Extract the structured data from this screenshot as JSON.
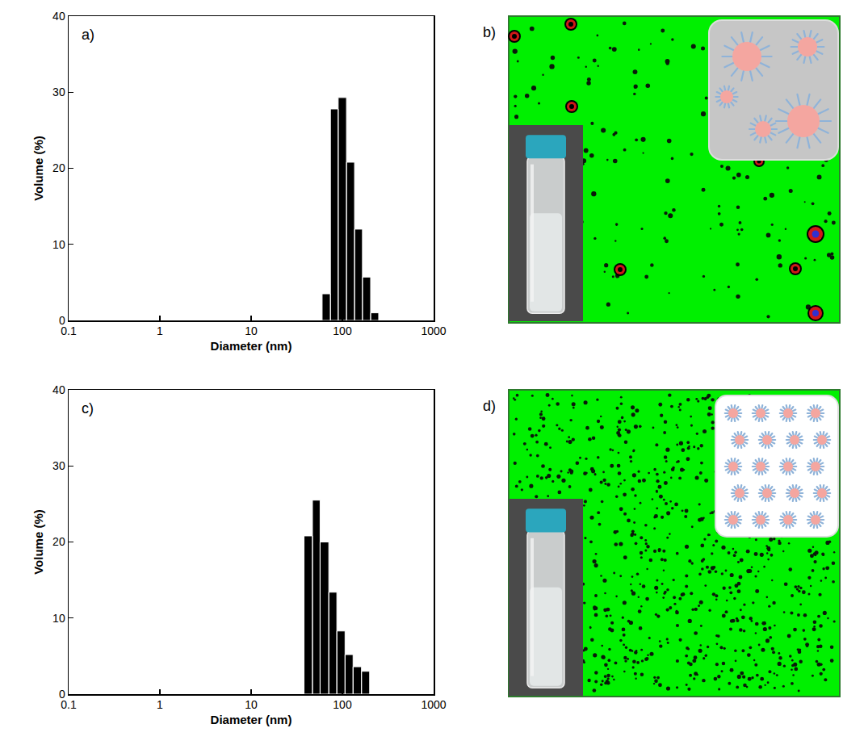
{
  "chart_data": [
    {
      "type": "histogram",
      "label": "a)",
      "x_label": "Diameter (nm)",
      "y_label": "Volume (%)",
      "bins": [
        60,
        74,
        90,
        111,
        136,
        166,
        204,
        250
      ],
      "values": [
        3.5,
        27.8,
        29.3,
        20.8,
        12.0,
        5.7,
        1.0
      ],
      "color": "#000000",
      "log": "x",
      "grid": false,
      "xlim": [
        0.1,
        1000
      ],
      "xticks": [
        0.1,
        1,
        10,
        100,
        1000
      ],
      "ylim": [
        0,
        40
      ],
      "yticks": [
        0,
        10,
        20,
        30,
        40
      ]
    },
    {
      "type": "histogram",
      "label": "c)",
      "x_label": "Diameter (nm)",
      "y_label": "Volume (%)",
      "bins": [
        38,
        47,
        57,
        71,
        87,
        107,
        131,
        162,
        199
      ],
      "values": [
        20.8,
        25.5,
        20.0,
        13.4,
        8.3,
        5.2,
        3.6,
        3.0
      ],
      "color": "#000000",
      "log": "x",
      "grid": false,
      "xlim": [
        0.1,
        1000
      ],
      "xticks": [
        0.1,
        1,
        10,
        100,
        1000
      ],
      "ylim": [
        0,
        40
      ],
      "yticks": [
        0,
        10,
        20,
        30,
        40
      ]
    }
  ],
  "images": [
    {
      "label": "b)"
    },
    {
      "label": "d)"
    }
  ]
}
